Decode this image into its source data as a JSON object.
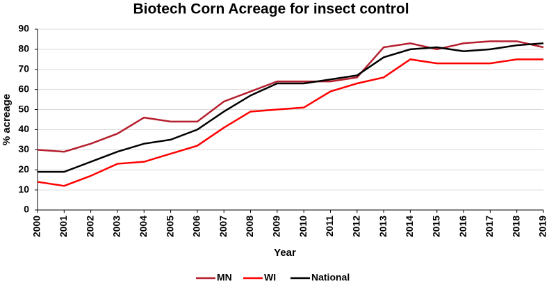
{
  "chart_data": {
    "type": "line",
    "title": "Biotech Corn Acreage for insect control",
    "x_label": "Year",
    "y_label": "% acreage",
    "x": [
      2000,
      2001,
      2002,
      2003,
      2004,
      2005,
      2006,
      2007,
      2008,
      2009,
      2010,
      2011,
      2012,
      2013,
      2014,
      2015,
      2016,
      2017,
      2018,
      2019
    ],
    "series": [
      {
        "name": "MN",
        "color": "#b51f2e",
        "values": [
          30,
          29,
          33,
          38,
          46,
          44,
          44,
          54,
          59,
          64,
          64,
          64,
          66,
          81,
          83,
          80,
          83,
          84,
          84,
          81
        ]
      },
      {
        "name": "WI",
        "color": "#ff0000",
        "values": [
          14,
          12,
          17,
          23,
          24,
          28,
          32,
          41,
          49,
          50,
          51,
          59,
          63,
          66,
          75,
          73,
          73,
          73,
          75,
          75
        ]
      },
      {
        "name": "National",
        "color": "#000000",
        "values": [
          19,
          19,
          24,
          29,
          33,
          35,
          40,
          49,
          57,
          63,
          63,
          65,
          67,
          76,
          80,
          81,
          79,
          80,
          82,
          83
        ]
      }
    ],
    "xlim": [
      2000,
      2019
    ],
    "xticks": [
      2000,
      2001,
      2002,
      2003,
      2004,
      2005,
      2006,
      2007,
      2008,
      2009,
      2010,
      2011,
      2012,
      2013,
      2014,
      2015,
      2016,
      2017,
      2018,
      2019
    ],
    "ylim": [
      0,
      90
    ],
    "yticks": [
      0,
      10,
      20,
      30,
      40,
      50,
      60,
      70,
      80,
      90
    ],
    "grid": true,
    "legend": "bottom"
  }
}
